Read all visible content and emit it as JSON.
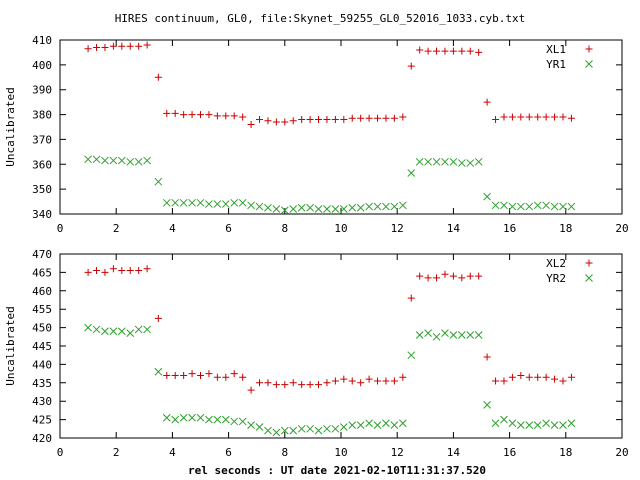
{
  "chart_data": {
    "title": "HIRES continuum, GL0, file:Skynet_59255_GL0_52016_1033.cyb.txt",
    "xlabel": "rel seconds : UT date 2021-02-10T11:31:37.520",
    "colors": {
      "XL": "#cc0000",
      "YR": "#2ca02c"
    },
    "panels": [
      {
        "type": "scatter",
        "ylabel": "Uncalibrated",
        "xlim": [
          0,
          20
        ],
        "ylim": [
          340,
          410
        ],
        "xticks": [
          0,
          2,
          4,
          6,
          8,
          10,
          12,
          14,
          16,
          18,
          20
        ],
        "yticks": [
          340,
          350,
          360,
          370,
          380,
          390,
          400,
          410
        ],
        "legend": "top-right",
        "series": [
          {
            "name": "XL1",
            "marker": "plus",
            "color": "#cc0000",
            "x": [
              1.0,
              1.3,
              1.6,
              1.9,
              2.2,
              2.5,
              2.8,
              3.1,
              3.5,
              3.8,
              4.1,
              4.4,
              4.7,
              5.0,
              5.3,
              5.6,
              5.9,
              6.2,
              6.5,
              6.8,
              7.1,
              7.4,
              7.7,
              8.0,
              8.3,
              8.6,
              8.9,
              9.2,
              9.5,
              9.8,
              10.1,
              10.4,
              10.7,
              11.0,
              11.3,
              11.6,
              11.9,
              12.2,
              12.5,
              12.8,
              13.1,
              13.4,
              13.7,
              14.0,
              14.3,
              14.6,
              14.9,
              15.2,
              15.5,
              15.8,
              16.1,
              16.4,
              16.7,
              17.0,
              17.3,
              17.6,
              17.9,
              18.2
            ],
            "values": [
              406.5,
              407,
              407,
              407.5,
              407.5,
              407.5,
              407.5,
              408,
              395,
              380.5,
              380.5,
              380,
              380,
              380,
              380,
              379.5,
              379.5,
              379.5,
              379,
              376,
              378,
              377.5,
              377,
              377,
              377.5,
              378,
              378,
              378,
              378,
              378,
              378,
              378.5,
              378.5,
              378.5,
              378.5,
              378.5,
              378.5,
              379,
              399.5,
              406,
              405.5,
              405.5,
              405.5,
              405.5,
              405.5,
              405.5,
              405,
              385,
              378,
              379,
              379,
              379,
              379,
              379,
              379,
              379,
              379,
              378.5
            ]
          },
          {
            "name": "YR1",
            "marker": "cross",
            "color": "#2ca02c",
            "x": [
              1.0,
              1.3,
              1.6,
              1.9,
              2.2,
              2.5,
              2.8,
              3.1,
              3.5,
              3.8,
              4.1,
              4.4,
              4.7,
              5.0,
              5.3,
              5.6,
              5.9,
              6.2,
              6.5,
              6.8,
              7.1,
              7.4,
              7.7,
              8.0,
              8.3,
              8.6,
              8.9,
              9.2,
              9.5,
              9.8,
              10.1,
              10.4,
              10.7,
              11.0,
              11.3,
              11.6,
              11.9,
              12.2,
              12.5,
              12.8,
              13.1,
              13.4,
              13.7,
              14.0,
              14.3,
              14.6,
              14.9,
              15.2,
              15.5,
              15.8,
              16.1,
              16.4,
              16.7,
              17.0,
              17.3,
              17.6,
              17.9,
              18.2
            ],
            "values": [
              362,
              362,
              361.5,
              361.5,
              361.5,
              361,
              361,
              361.5,
              353,
              344.5,
              344.5,
              344.5,
              344.5,
              344.5,
              344,
              344,
              344,
              344.5,
              344.5,
              343.5,
              343,
              342.5,
              342,
              341.5,
              342,
              342.5,
              342.5,
              342,
              342,
              342,
              342,
              342.5,
              342.5,
              343,
              343,
              343,
              343,
              343.5,
              356.5,
              361,
              361,
              361,
              361,
              361,
              360.5,
              360.5,
              361,
              347,
              343.5,
              343.5,
              343,
              343,
              343,
              343.5,
              343.5,
              343,
              343,
              343
            ]
          }
        ]
      },
      {
        "type": "scatter",
        "ylabel": "Uncalibrated",
        "xlim": [
          0,
          20
        ],
        "ylim": [
          420,
          470
        ],
        "xticks": [
          0,
          2,
          4,
          6,
          8,
          10,
          12,
          14,
          16,
          18,
          20
        ],
        "yticks": [
          420,
          425,
          430,
          435,
          440,
          445,
          450,
          455,
          460,
          465,
          470
        ],
        "legend": "top-right",
        "series": [
          {
            "name": "XL2",
            "marker": "plus",
            "color": "#cc0000",
            "x": [
              1.0,
              1.3,
              1.6,
              1.9,
              2.2,
              2.5,
              2.8,
              3.1,
              3.5,
              3.8,
              4.1,
              4.4,
              4.7,
              5.0,
              5.3,
              5.6,
              5.9,
              6.2,
              6.5,
              6.8,
              7.1,
              7.4,
              7.7,
              8.0,
              8.3,
              8.6,
              8.9,
              9.2,
              9.5,
              9.8,
              10.1,
              10.4,
              10.7,
              11.0,
              11.3,
              11.6,
              11.9,
              12.2,
              12.5,
              12.8,
              13.1,
              13.4,
              13.7,
              14.0,
              14.3,
              14.6,
              14.9,
              15.2,
              15.5,
              15.8,
              16.1,
              16.4,
              16.7,
              17.0,
              17.3,
              17.6,
              17.9,
              18.2
            ],
            "values": [
              465,
              465.5,
              465,
              466,
              465.5,
              465.5,
              465.5,
              466,
              452.5,
              437,
              437,
              437,
              437.5,
              437,
              437.5,
              436.5,
              436.5,
              437.5,
              436.5,
              433,
              435,
              435,
              434.5,
              434.5,
              435,
              434.5,
              434.5,
              434.5,
              435,
              435.5,
              436,
              435.5,
              435,
              436,
              435.5,
              435.5,
              435.5,
              436.5,
              458,
              464,
              463.5,
              463.5,
              464.5,
              464,
              463.5,
              464,
              464,
              442,
              435.5,
              435.5,
              436.5,
              437,
              436.5,
              436.5,
              436.5,
              436,
              435.5,
              436.5
            ]
          },
          {
            "name": "YR2",
            "marker": "cross",
            "color": "#2ca02c",
            "x": [
              1.0,
              1.3,
              1.6,
              1.9,
              2.2,
              2.5,
              2.8,
              3.1,
              3.5,
              3.8,
              4.1,
              4.4,
              4.7,
              5.0,
              5.3,
              5.6,
              5.9,
              6.2,
              6.5,
              6.8,
              7.1,
              7.4,
              7.7,
              8.0,
              8.3,
              8.6,
              8.9,
              9.2,
              9.5,
              9.8,
              10.1,
              10.4,
              10.7,
              11.0,
              11.3,
              11.6,
              11.9,
              12.2,
              12.5,
              12.8,
              13.1,
              13.4,
              13.7,
              14.0,
              14.3,
              14.6,
              14.9,
              15.2,
              15.5,
              15.8,
              16.1,
              16.4,
              16.7,
              17.0,
              17.3,
              17.6,
              17.9,
              18.2
            ],
            "values": [
              450,
              449.5,
              449,
              449,
              449,
              448.5,
              449.5,
              449.5,
              438,
              425.5,
              425,
              425.5,
              425.5,
              425.5,
              425,
              425,
              425,
              424.5,
              424.5,
              423.5,
              423,
              422,
              421.5,
              422,
              422,
              422.5,
              422.5,
              422,
              422.5,
              422.5,
              423,
              423.5,
              423.5,
              424,
              423.5,
              424,
              423.5,
              424,
              442.5,
              448,
              448.5,
              447.5,
              448.5,
              448,
              448,
              448,
              448,
              429,
              424,
              425,
              424,
              423.5,
              423.5,
              423.5,
              424,
              423.5,
              423.5,
              424
            ]
          }
        ]
      }
    ]
  }
}
